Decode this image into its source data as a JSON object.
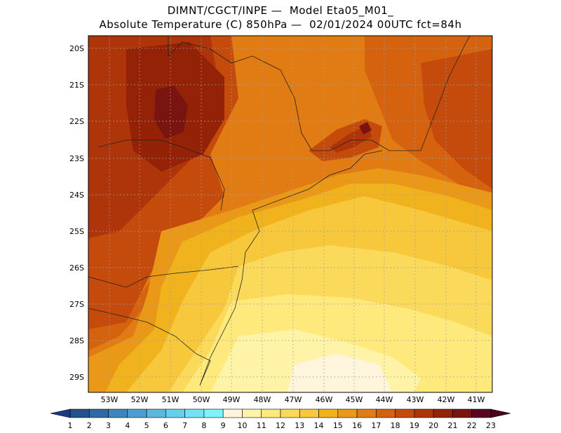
{
  "header": {
    "line1": "DIMNT/CGCT/INPE —  Model Eta05_M01_",
    "line2": "Absolute Temperature (C) 850hPa —  02/01/2024 00UTC fct=84h"
  },
  "axes": {
    "lat_labels": [
      "20S",
      "21S",
      "22S",
      "23S",
      "24S",
      "25S",
      "26S",
      "27S",
      "28S",
      "29S"
    ],
    "lon_labels": [
      "53W",
      "52W",
      "51W",
      "50W",
      "49W",
      "48W",
      "47W",
      "46W",
      "45W",
      "44W",
      "43W",
      "42W",
      "41W"
    ],
    "grid": true
  },
  "colorbar": {
    "labels": [
      "1",
      "2",
      "3",
      "4",
      "5",
      "6",
      "7",
      "8",
      "9",
      "10",
      "11",
      "12",
      "13",
      "14",
      "15",
      "16",
      "17",
      "18",
      "19",
      "20",
      "21",
      "22",
      "23"
    ],
    "colors": [
      "#1c3a82",
      "#23508f",
      "#2c6aa6",
      "#3c85bd",
      "#4d9ed0",
      "#5cb7df",
      "#66d0ec",
      "#6fe4f4",
      "#7bf4fb",
      "#fff5dd",
      "#fff3a8",
      "#feea7c",
      "#fbd95a",
      "#f7c73c",
      "#f0b21d",
      "#ea9818",
      "#e07c13",
      "#d5620e",
      "#c54b0c",
      "#ad3509",
      "#932207",
      "#7a1410",
      "#5a0620",
      "#4a0216"
    ]
  },
  "map_colors": {
    "c10": "#fff5dd",
    "c11": "#fff3a8",
    "c12": "#feea7c",
    "c13": "#fbd95a",
    "c14": "#f7c73c",
    "c15": "#f0b21d",
    "c16": "#ea9818",
    "c17": "#e07c13",
    "c18": "#d5620e",
    "c19": "#c54b0c",
    "c20": "#ad3509",
    "c21": "#932207",
    "c22": "#7a1410"
  }
}
